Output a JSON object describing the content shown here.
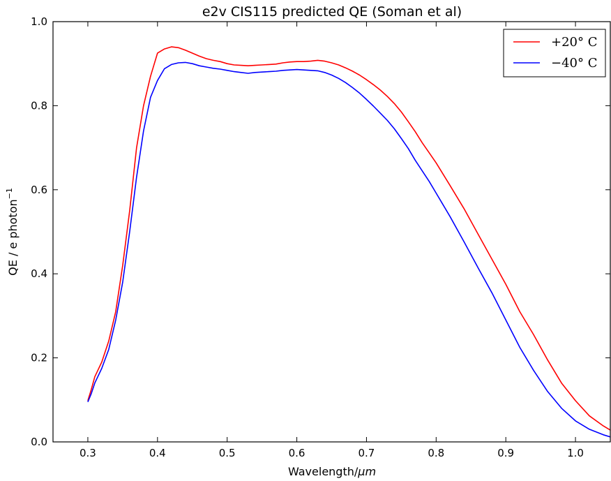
{
  "chart_data": {
    "type": "line",
    "title": "e2v CIS115 predicted QE (Soman et al)",
    "xlabel": "Wavelength/",
    "xlabel_unit": "μm",
    "ylabel": "QE / e photon",
    "ylabel_sup": "−1",
    "xlim": [
      0.25,
      1.05
    ],
    "ylim": [
      0.0,
      1.0
    ],
    "xticks": [
      0.3,
      0.4,
      0.5,
      0.6,
      0.7,
      0.8,
      0.9,
      1.0
    ],
    "xtick_labels": [
      "0.3",
      "0.4",
      "0.5",
      "0.6",
      "0.7",
      "0.8",
      "0.9",
      "1.0"
    ],
    "yticks": [
      0.0,
      0.2,
      0.4,
      0.6,
      0.8,
      1.0
    ],
    "ytick_labels": [
      "0.0",
      "0.2",
      "0.4",
      "0.6",
      "0.8",
      "1.0"
    ],
    "grid": false,
    "legend_position": "top-right",
    "series": [
      {
        "name": "+20° C",
        "color": "#ff0000",
        "x": [
          0.3,
          0.305,
          0.31,
          0.32,
          0.33,
          0.34,
          0.35,
          0.36,
          0.37,
          0.38,
          0.39,
          0.4,
          0.41,
          0.42,
          0.43,
          0.44,
          0.45,
          0.46,
          0.47,
          0.48,
          0.49,
          0.5,
          0.51,
          0.52,
          0.53,
          0.54,
          0.55,
          0.56,
          0.57,
          0.58,
          0.59,
          0.6,
          0.61,
          0.62,
          0.63,
          0.64,
          0.65,
          0.66,
          0.67,
          0.68,
          0.69,
          0.7,
          0.71,
          0.72,
          0.73,
          0.74,
          0.75,
          0.76,
          0.77,
          0.78,
          0.79,
          0.8,
          0.82,
          0.84,
          0.86,
          0.88,
          0.9,
          0.92,
          0.94,
          0.96,
          0.98,
          1.0,
          1.02,
          1.04,
          1.05
        ],
        "y": [
          0.098,
          0.125,
          0.155,
          0.19,
          0.24,
          0.31,
          0.42,
          0.55,
          0.7,
          0.8,
          0.87,
          0.925,
          0.935,
          0.94,
          0.938,
          0.932,
          0.925,
          0.918,
          0.912,
          0.908,
          0.905,
          0.9,
          0.897,
          0.896,
          0.895,
          0.896,
          0.897,
          0.898,
          0.899,
          0.902,
          0.904,
          0.905,
          0.905,
          0.906,
          0.908,
          0.906,
          0.902,
          0.897,
          0.89,
          0.882,
          0.873,
          0.862,
          0.85,
          0.837,
          0.822,
          0.805,
          0.785,
          0.762,
          0.738,
          0.712,
          0.688,
          0.664,
          0.61,
          0.555,
          0.495,
          0.435,
          0.375,
          0.31,
          0.255,
          0.195,
          0.14,
          0.098,
          0.062,
          0.038,
          0.028
        ]
      },
      {
        "name": "−40° C",
        "color": "#0000ff",
        "x": [
          0.3,
          0.305,
          0.31,
          0.32,
          0.33,
          0.34,
          0.35,
          0.36,
          0.37,
          0.38,
          0.39,
          0.4,
          0.41,
          0.42,
          0.43,
          0.44,
          0.45,
          0.46,
          0.47,
          0.48,
          0.49,
          0.5,
          0.51,
          0.52,
          0.53,
          0.54,
          0.55,
          0.56,
          0.57,
          0.58,
          0.59,
          0.6,
          0.61,
          0.62,
          0.63,
          0.64,
          0.65,
          0.66,
          0.67,
          0.68,
          0.69,
          0.7,
          0.71,
          0.72,
          0.73,
          0.74,
          0.75,
          0.76,
          0.77,
          0.78,
          0.79,
          0.8,
          0.82,
          0.84,
          0.86,
          0.88,
          0.9,
          0.92,
          0.94,
          0.96,
          0.98,
          1.0,
          1.02,
          1.04,
          1.05
        ],
        "y": [
          0.095,
          0.115,
          0.14,
          0.175,
          0.22,
          0.29,
          0.38,
          0.5,
          0.63,
          0.74,
          0.82,
          0.86,
          0.888,
          0.898,
          0.902,
          0.903,
          0.9,
          0.895,
          0.892,
          0.889,
          0.887,
          0.884,
          0.881,
          0.879,
          0.877,
          0.879,
          0.88,
          0.881,
          0.882,
          0.884,
          0.885,
          0.886,
          0.885,
          0.884,
          0.883,
          0.879,
          0.873,
          0.865,
          0.855,
          0.843,
          0.83,
          0.815,
          0.799,
          0.782,
          0.765,
          0.745,
          0.722,
          0.698,
          0.67,
          0.645,
          0.62,
          0.592,
          0.536,
          0.476,
          0.415,
          0.355,
          0.29,
          0.225,
          0.17,
          0.12,
          0.08,
          0.05,
          0.03,
          0.017,
          0.012
        ]
      }
    ]
  }
}
